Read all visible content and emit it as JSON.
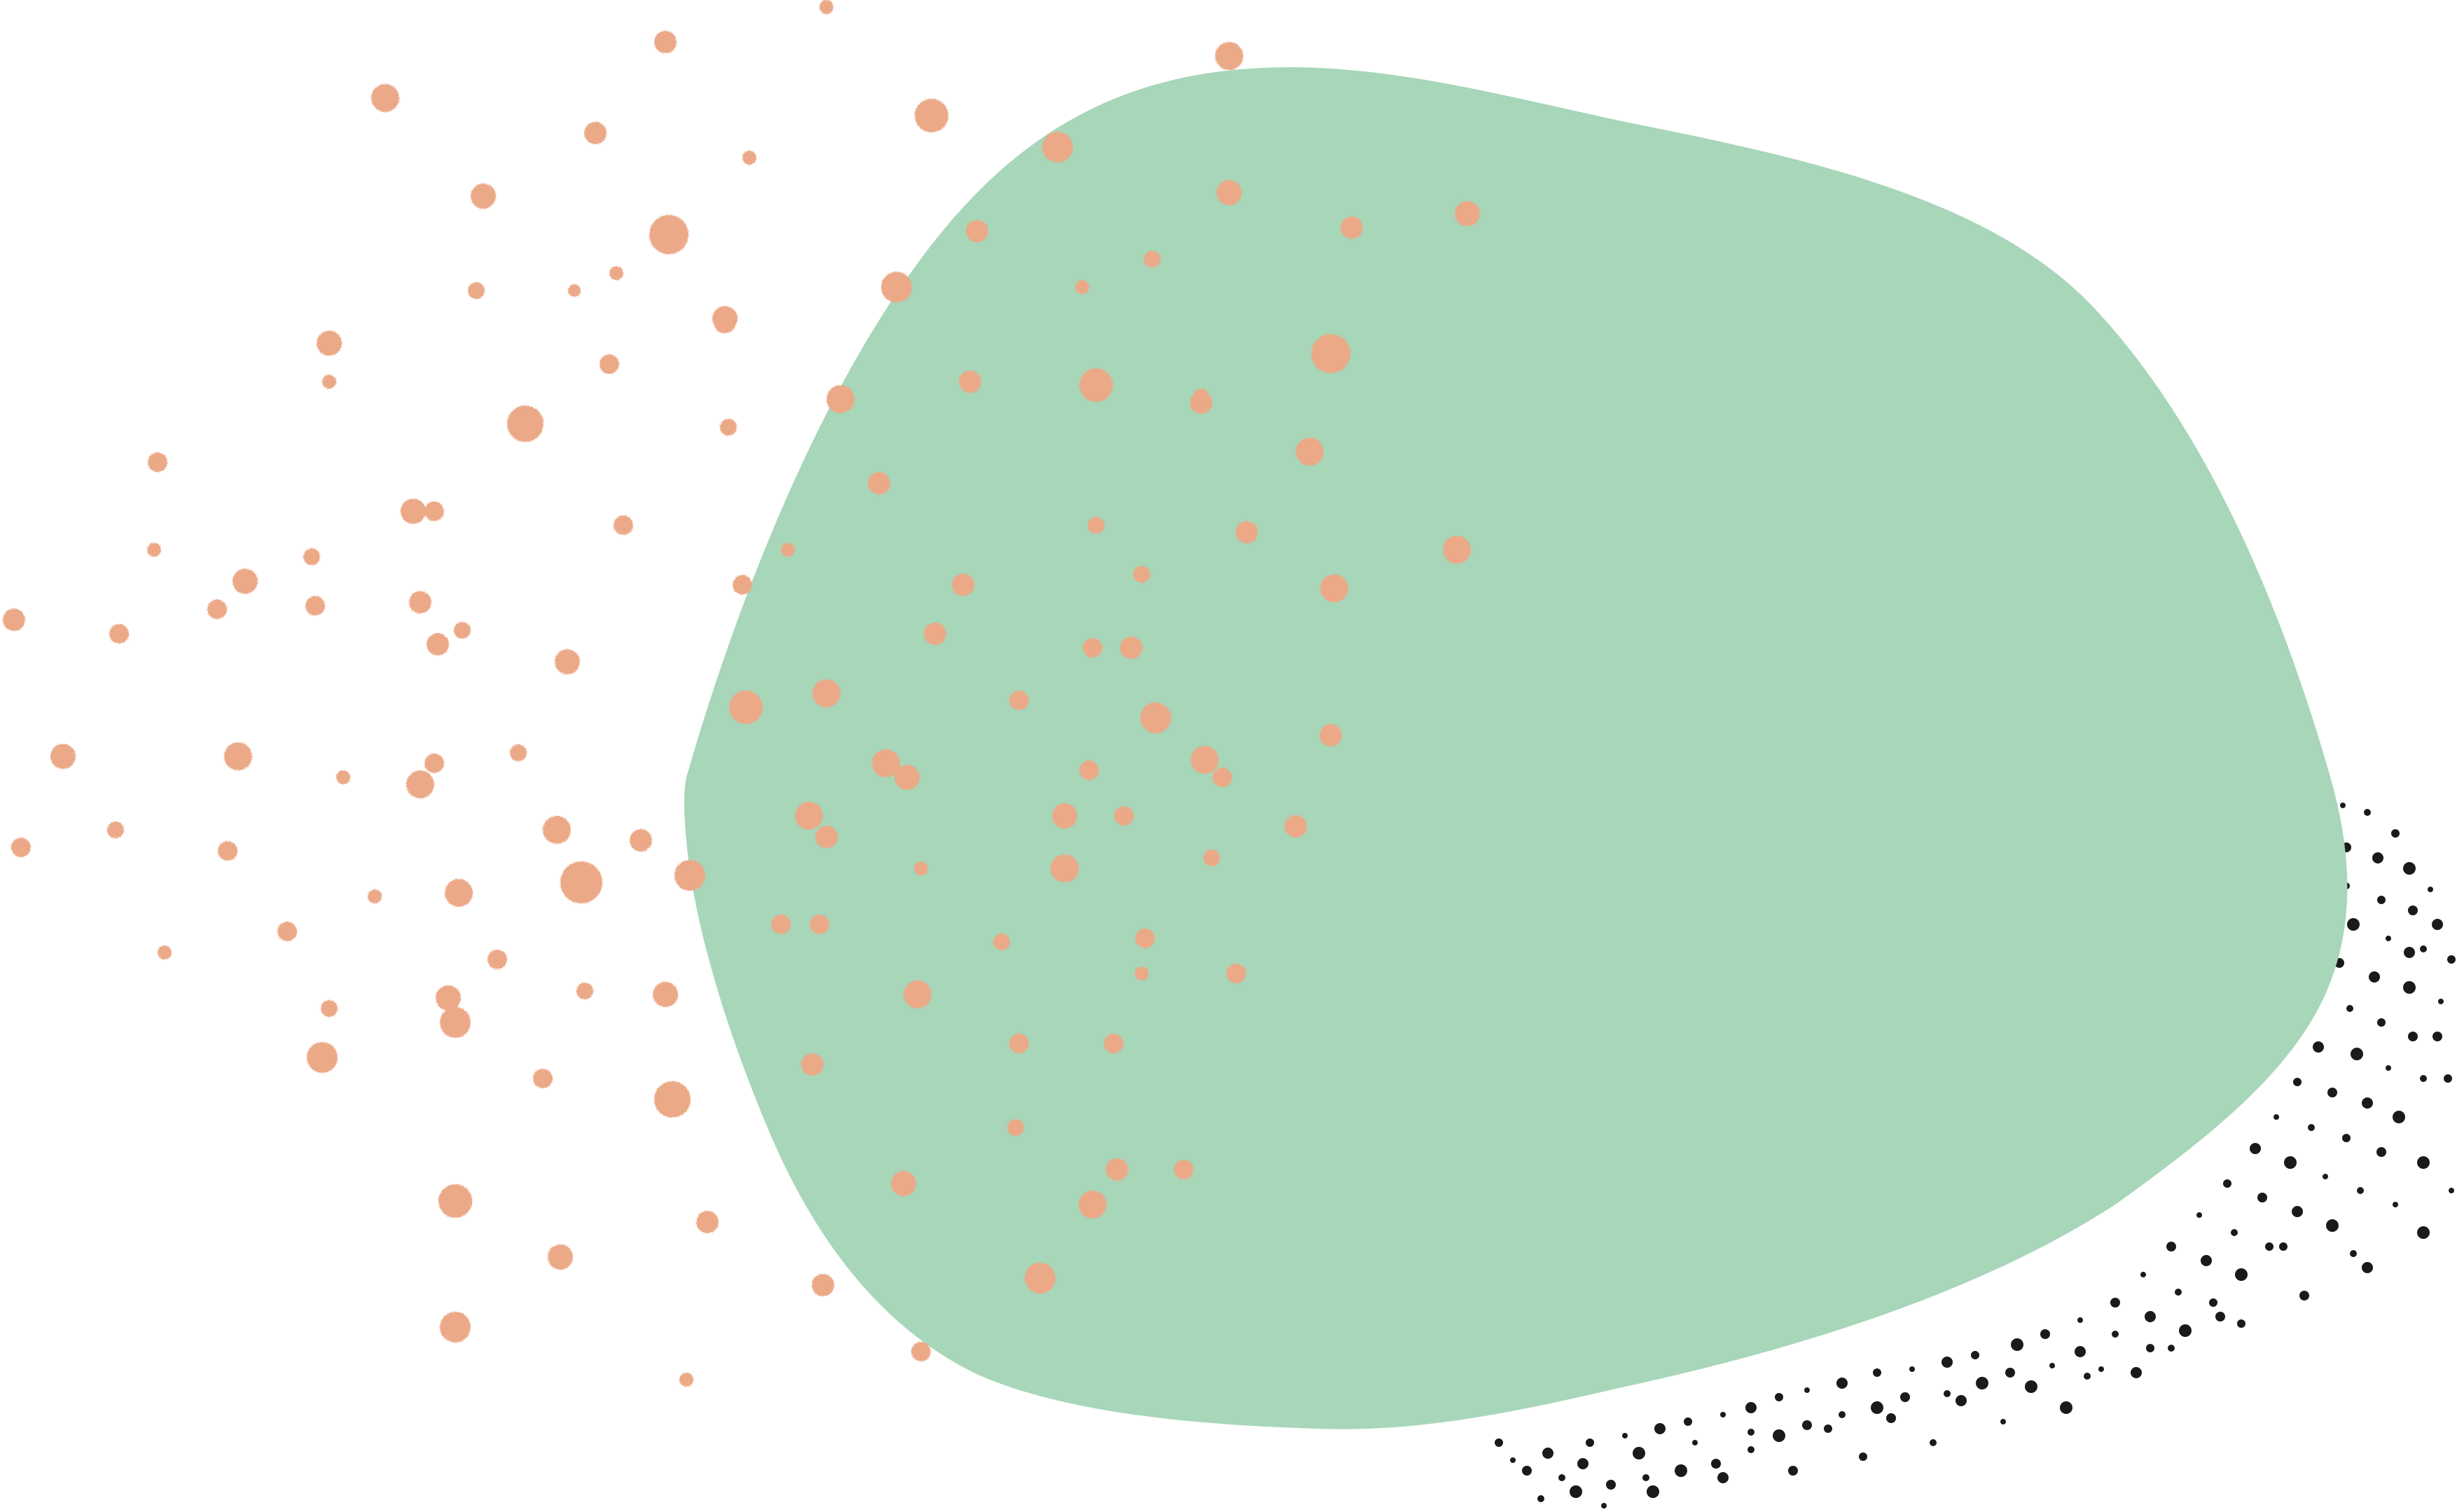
{
  "colors": {
    "background": "#ffffff",
    "blob": "#a7d6b9",
    "speckle_orange": "#eba987",
    "speckle_black": "#1a1a1a"
  },
  "shapes": {
    "main_blob": "organic-green-blob",
    "orange_speckles": "orange-dot-splatter",
    "black_speckles": "black-dot-splatter"
  }
}
